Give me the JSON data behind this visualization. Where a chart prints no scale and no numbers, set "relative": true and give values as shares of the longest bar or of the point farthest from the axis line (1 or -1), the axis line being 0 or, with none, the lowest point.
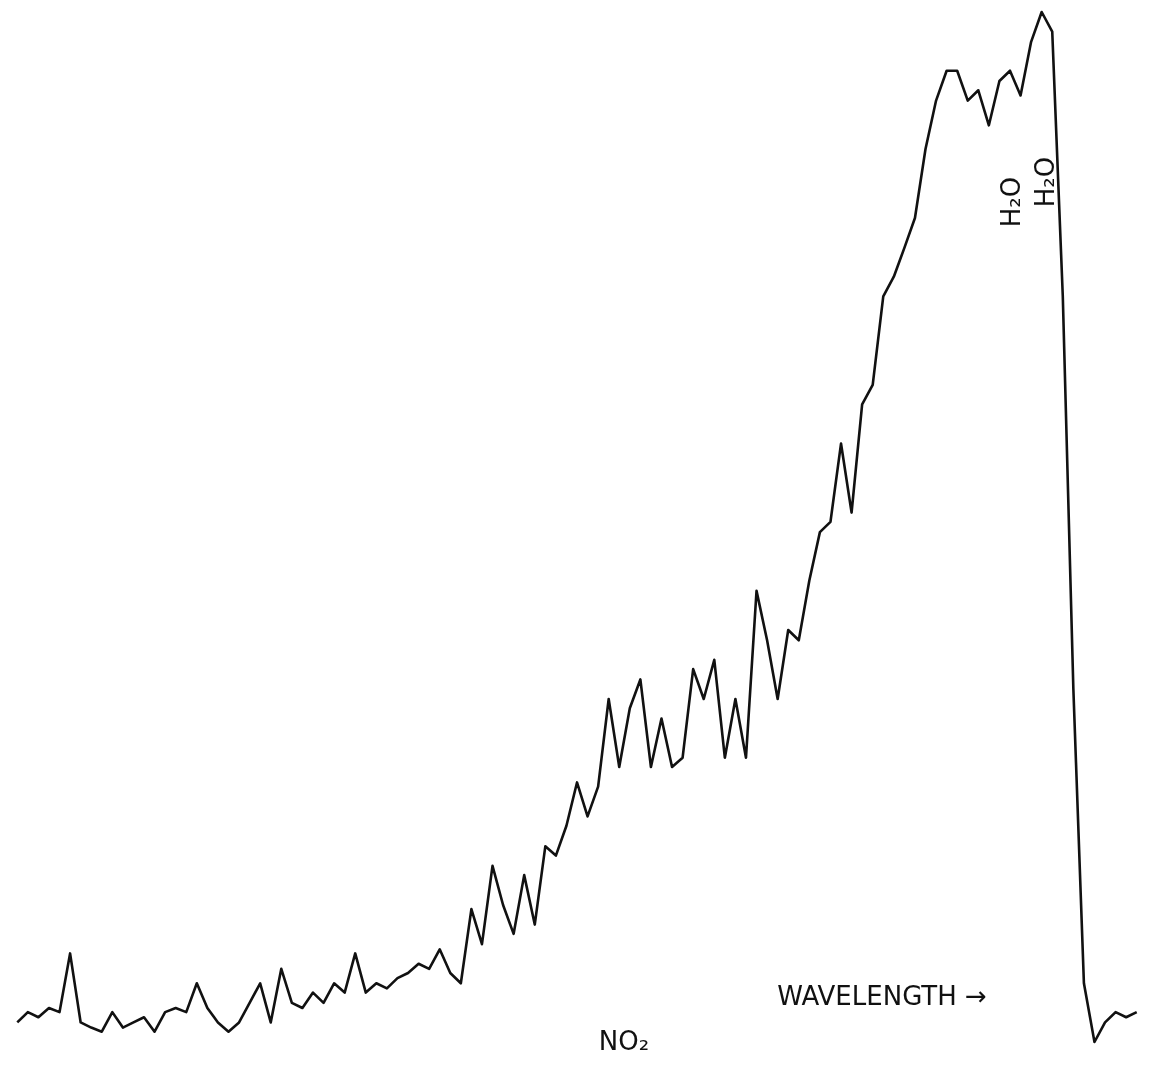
{
  "chart_data": {
    "type": "line",
    "relative": true,
    "categories": [
      null,
      null,
      null,
      null,
      null,
      null,
      null,
      null,
      null,
      null,
      null,
      null,
      null,
      null,
      null,
      null,
      null,
      null,
      null,
      null,
      null,
      null,
      null,
      null,
      null,
      null,
      null,
      null,
      null,
      null,
      null,
      null,
      null,
      null,
      null,
      null,
      null,
      null,
      null,
      null,
      null,
      null,
      null,
      null,
      null,
      null,
      null,
      null,
      null,
      null,
      null,
      null,
      null,
      null,
      null,
      null,
      null,
      null,
      null,
      null,
      null,
      null,
      null,
      null,
      null,
      null,
      null,
      null,
      null,
      null,
      null,
      null,
      null,
      null,
      null,
      null,
      null,
      null,
      null,
      null,
      null,
      null,
      null,
      null,
      null,
      null,
      null,
      null,
      null,
      null,
      null,
      null,
      null,
      null,
      null,
      null,
      null,
      null,
      null,
      null,
      null,
      null,
      null,
      null,
      null,
      null,
      null
    ],
    "series": [
      {
        "color": "#111111",
        "values": [
          0.019,
          0.029,
          0.024,
          0.033,
          0.029,
          0.086,
          0.019,
          0.014,
          0.01,
          0.029,
          0.014,
          0.019,
          0.024,
          0.01,
          0.029,
          0.033,
          0.029,
          0.057,
          0.033,
          0.019,
          0.01,
          0.019,
          0.038,
          0.057,
          0.019,
          0.071,
          0.038,
          0.033,
          0.048,
          0.038,
          0.057,
          0.048,
          0.086,
          0.048,
          0.057,
          0.052,
          0.062,
          0.067,
          0.076,
          0.071,
          0.09,
          0.067,
          0.057,
          0.129,
          0.095,
          0.171,
          0.133,
          0.105,
          0.162,
          0.114,
          0.19,
          0.181,
          0.21,
          0.252,
          0.219,
          0.248,
          0.333,
          0.267,
          0.324,
          0.352,
          0.267,
          0.314,
          0.267,
          0.276,
          0.362,
          0.333,
          0.371,
          0.276,
          0.333,
          0.276,
          0.438,
          0.39,
          0.333,
          0.4,
          0.39,
          0.448,
          0.495,
          0.505,
          0.581,
          0.514,
          0.619,
          0.638,
          0.724,
          0.743,
          0.771,
          0.8,
          0.867,
          0.914,
          0.943,
          0.943,
          0.914,
          0.924,
          0.89,
          0.933,
          0.943,
          0.919,
          0.971,
          1.0,
          0.981,
          0.724,
          0.343,
          0.057,
          0.0,
          0.019,
          0.029,
          0.024,
          0.029
        ]
      }
    ],
    "annotations": [
      "H₂O",
      "H₂O",
      "NO₂",
      "WAVELENGTH →"
    ],
    "marker": "none",
    "line_style": "solid",
    "grid": false
  }
}
